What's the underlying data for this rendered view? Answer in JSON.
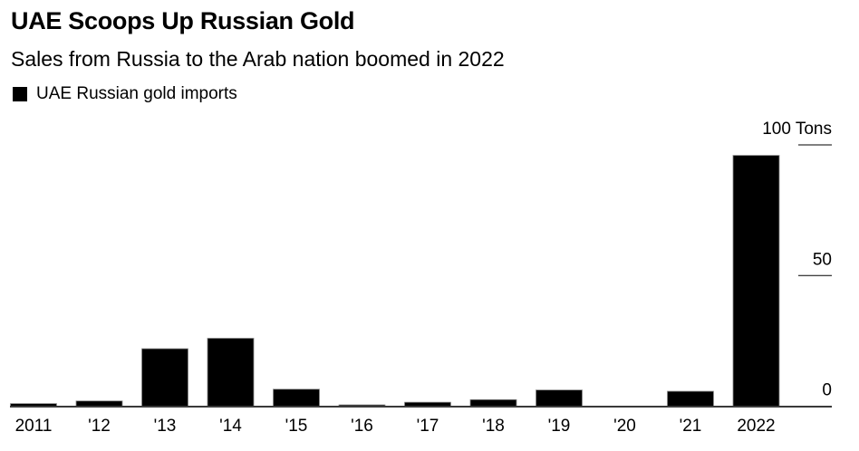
{
  "header": {
    "title": "UAE Scoops Up Russian Gold",
    "subtitle": "Sales from Russia to the Arab nation boomed in 2022"
  },
  "legend": {
    "items": [
      {
        "label": "UAE Russian gold imports",
        "color": "#000000"
      }
    ]
  },
  "chart_data": {
    "type": "bar",
    "title": "UAE Scoops Up Russian Gold",
    "subtitle": "Sales from Russia to the Arab nation boomed in 2022",
    "xlabel": "",
    "ylabel": "Tons",
    "categories": [
      "2011",
      "'12",
      "'13",
      "'14",
      "'15",
      "'16",
      "'17",
      "'18",
      "'19",
      "'20",
      "'21",
      "2022"
    ],
    "series": [
      {
        "name": "UAE Russian gold imports",
        "color": "#000000",
        "values": [
          1,
          2,
          22,
          26,
          6.5,
          0.5,
          1.5,
          2.5,
          6.2,
          -0.3,
          5.7,
          96
        ]
      }
    ],
    "ylim": [
      0,
      100
    ],
    "yticks": [
      {
        "value": 100,
        "label": "100 Tons"
      },
      {
        "value": 50,
        "label": "50"
      },
      {
        "value": 0,
        "label": "0"
      }
    ],
    "y_axis_side": "right",
    "grid": false,
    "legend_position": "top-left"
  }
}
